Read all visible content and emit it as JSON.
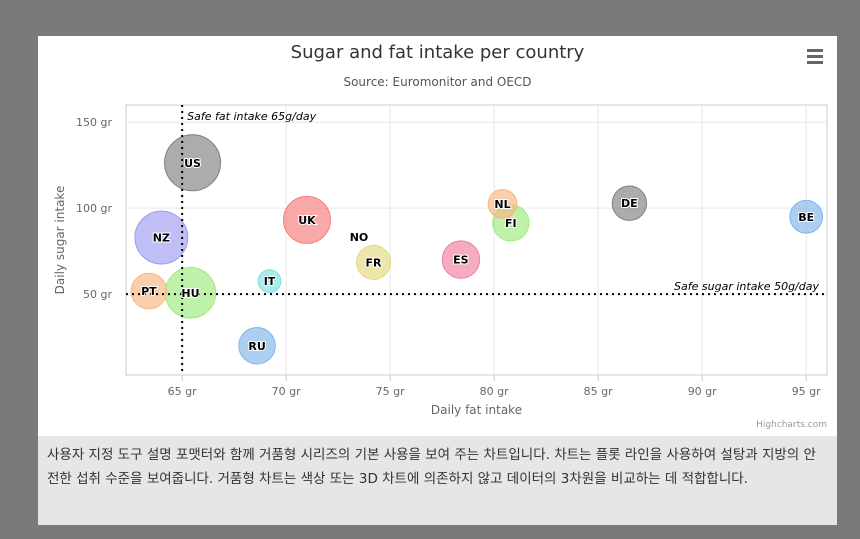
{
  "chart_data": {
    "type": "bubble",
    "title": "Sugar and fat intake per country",
    "subtitle": "Source: Euromonitor and OECD",
    "xlabel": "Daily fat intake",
    "ylabel": "Daily sugar intake",
    "xlim": [
      62.3,
      96
    ],
    "ylim": [
      3,
      160
    ],
    "x_ticks": [
      65,
      70,
      75,
      80,
      85,
      90,
      95
    ],
    "y_ticks": [
      50,
      100,
      150
    ],
    "tick_unit": " gr",
    "grid": true,
    "legend": "none",
    "plot_lines": [
      {
        "axis": "x",
        "value": 65,
        "label": "Safe fat intake 65g/day"
      },
      {
        "axis": "y",
        "value": 50,
        "label": "Safe sugar intake 50g/day"
      }
    ],
    "points": [
      {
        "name": "US",
        "x": 65.5,
        "y": 126.4,
        "z": 35.3,
        "color": "#7f7f7f"
      },
      {
        "name": "NZ",
        "x": 64,
        "y": 82.9,
        "z": 31.3,
        "color": "#9c9cf0"
      },
      {
        "name": "UK",
        "x": 71,
        "y": 93.2,
        "z": 24.7,
        "color": "#f77b7b"
      },
      {
        "name": "HU",
        "x": 65.4,
        "y": 50.8,
        "z": 28.5,
        "color": "#9ee97e"
      },
      {
        "name": "PT",
        "x": 63.4,
        "y": 51.8,
        "z": 15.4,
        "color": "#f7b77f"
      },
      {
        "name": "RU",
        "x": 68.6,
        "y": 20,
        "z": 16,
        "color": "#7fb5ea"
      },
      {
        "name": "IT",
        "x": 69.2,
        "y": 57.6,
        "z": 10.4,
        "color": "#7fe0e0"
      },
      {
        "name": "FR",
        "x": 74.2,
        "y": 68.5,
        "z": 14.5,
        "color": "#e3d97f"
      },
      {
        "name": "NO",
        "x": 73.5,
        "y": 83.1,
        "z": 10,
        "color": "#ffffff"
      },
      {
        "name": "ES",
        "x": 78.4,
        "y": 70.1,
        "z": 16.6,
        "color": "#f07f9e"
      },
      {
        "name": "NL",
        "x": 80.4,
        "y": 102.5,
        "z": 12,
        "color": "#f7b77f"
      },
      {
        "name": "FI",
        "x": 80.8,
        "y": 91.5,
        "z": 15.8,
        "color": "#9ee97e"
      },
      {
        "name": "DE",
        "x": 86.5,
        "y": 102.9,
        "z": 14.7,
        "color": "#7f7f7f"
      },
      {
        "name": "BE",
        "x": 95,
        "y": 95,
        "z": 13.8,
        "color": "#7fb5ea"
      }
    ]
  },
  "credits": "Highcharts.com",
  "description": "사용자 지정 도구 설명 포맷터와 함께 거품형 시리즈의 기본 사용을 보여 주는 차트입니다. 차트는 플롯 라인을 사용하여 설탕과 지방의 안전한 섭취 수준을 보여줍니다. 거품형 차트는 색상 또는 3D 차트에 의존하지 않고 데이터의 3차원을 비교하는 데 적합합니다."
}
